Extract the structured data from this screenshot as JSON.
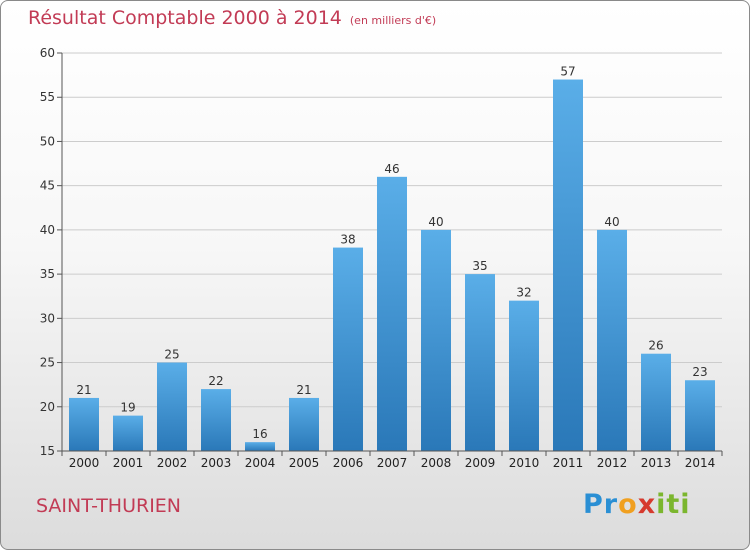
{
  "chart_data": {
    "type": "bar",
    "title": "Résultat Comptable 2000 à 2014",
    "subtitle": "(en milliers d'€)",
    "categories": [
      "2000",
      "2001",
      "2002",
      "2003",
      "2004",
      "2005",
      "2006",
      "2007",
      "2008",
      "2009",
      "2010",
      "2011",
      "2012",
      "2013",
      "2014"
    ],
    "values": [
      21,
      19,
      25,
      22,
      16,
      21,
      38,
      46,
      40,
      35,
      32,
      57,
      40,
      26,
      23
    ],
    "ylim": [
      15,
      60
    ],
    "yticks": [
      15,
      20,
      25,
      30,
      35,
      40,
      45,
      50,
      55,
      60
    ],
    "xlabel": "",
    "ylabel": "",
    "grid": true,
    "colors": {
      "bar_top": "#5aaee8",
      "bar_bottom": "#2a78b8",
      "grid": "#cccccc",
      "accent": "#c23b55"
    }
  },
  "footer": {
    "commune": "SAINT-THURIEN",
    "logo_letters": [
      "P",
      "r",
      "o",
      "x",
      "i",
      "t",
      "i"
    ],
    "logo_colors": [
      "#2a8fd4",
      "#2a8fd4",
      "#f0a020",
      "#d63a2e",
      "#7bb62e",
      "#7bb62e",
      "#7bb62e"
    ]
  }
}
